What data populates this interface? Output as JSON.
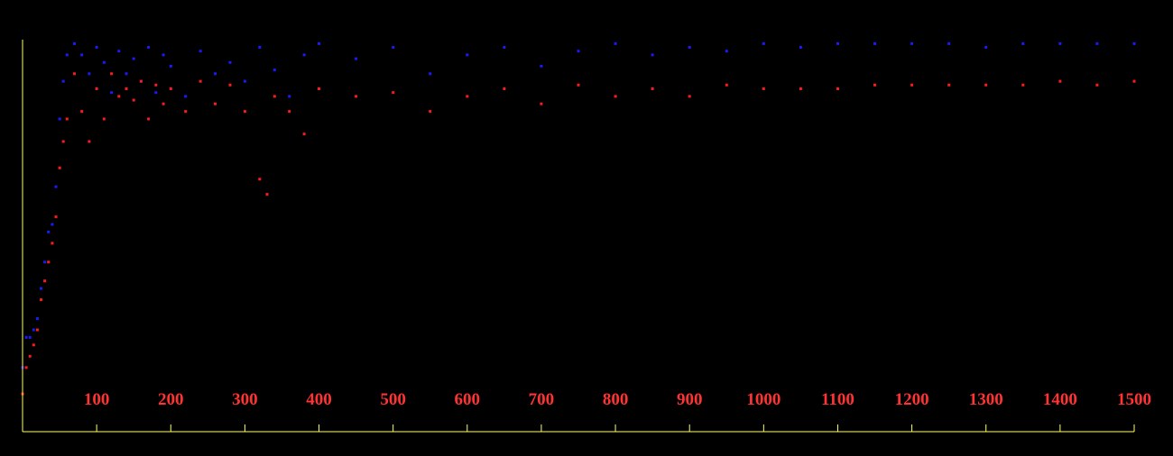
{
  "chart_data": {
    "type": "scatter",
    "title": "",
    "xlabel": "",
    "ylabel": "",
    "xlim": [
      0,
      1500
    ],
    "ylim": [
      0,
      1
    ],
    "grid": false,
    "legend": "none",
    "x_ticks": [
      100,
      200,
      300,
      400,
      500,
      600,
      700,
      800,
      900,
      1000,
      1100,
      1200,
      1300,
      1400,
      1500
    ],
    "x_tick_labels": [
      "100",
      "200",
      "300",
      "400",
      "500",
      "600",
      "700",
      "800",
      "900",
      "1000",
      "1100",
      "1200",
      "1300",
      "1400",
      "1500"
    ],
    "colors": {
      "background": "#000000",
      "axis": "#ffff66",
      "tick_label": "#ff3333",
      "blue_series": "#1a1aff",
      "red_series": "#ff1a1a"
    },
    "series": [
      {
        "color": "blue",
        "x": [
          0,
          5,
          10,
          15,
          20,
          25,
          30,
          35,
          40,
          45,
          50,
          55,
          60,
          70,
          80,
          90,
          100,
          110,
          120,
          130,
          140,
          150,
          160,
          170,
          180,
          190,
          200,
          220,
          240,
          260,
          280,
          300,
          320,
          340,
          360,
          380,
          400,
          450,
          500,
          550,
          600,
          650,
          700,
          750,
          800,
          850,
          900,
          950,
          1000,
          1050,
          1100,
          1150,
          1200,
          1250,
          1300,
          1350,
          1400,
          1450,
          1500
        ],
        "y": [
          0.12,
          0.2,
          0.2,
          0.22,
          0.25,
          0.33,
          0.4,
          0.48,
          0.5,
          0.6,
          0.78,
          0.88,
          0.95,
          0.98,
          0.95,
          0.9,
          0.97,
          0.93,
          0.85,
          0.96,
          0.9,
          0.94,
          0.88,
          0.97,
          0.85,
          0.95,
          0.92,
          0.84,
          0.96,
          0.9,
          0.93,
          0.88,
          0.97,
          0.91,
          0.84,
          0.95,
          0.98,
          0.94,
          0.97,
          0.9,
          0.95,
          0.97,
          0.92,
          0.96,
          0.98,
          0.95,
          0.97,
          0.96,
          0.98,
          0.97,
          0.98,
          0.98,
          0.98,
          0.98,
          0.97,
          0.98,
          0.98,
          0.98,
          0.98
        ]
      },
      {
        "color": "red",
        "x": [
          0,
          5,
          10,
          15,
          20,
          25,
          30,
          35,
          40,
          45,
          50,
          55,
          60,
          70,
          80,
          90,
          100,
          110,
          120,
          130,
          140,
          150,
          160,
          170,
          180,
          190,
          200,
          220,
          240,
          260,
          280,
          300,
          320,
          330,
          340,
          360,
          380,
          400,
          450,
          500,
          550,
          600,
          650,
          700,
          750,
          800,
          850,
          900,
          950,
          1000,
          1050,
          1100,
          1150,
          1200,
          1250,
          1300,
          1350,
          1400,
          1450,
          1500
        ],
        "y": [
          0.05,
          0.12,
          0.15,
          0.18,
          0.22,
          0.3,
          0.35,
          0.4,
          0.45,
          0.52,
          0.65,
          0.72,
          0.78,
          0.9,
          0.8,
          0.72,
          0.86,
          0.78,
          0.9,
          0.84,
          0.86,
          0.83,
          0.88,
          0.78,
          0.87,
          0.82,
          0.86,
          0.8,
          0.88,
          0.82,
          0.87,
          0.8,
          0.62,
          0.58,
          0.84,
          0.8,
          0.74,
          0.86,
          0.84,
          0.85,
          0.8,
          0.84,
          0.86,
          0.82,
          0.87,
          0.84,
          0.86,
          0.84,
          0.87,
          0.86,
          0.86,
          0.86,
          0.87,
          0.87,
          0.87,
          0.87,
          0.87,
          0.88,
          0.87,
          0.88
        ]
      }
    ]
  }
}
